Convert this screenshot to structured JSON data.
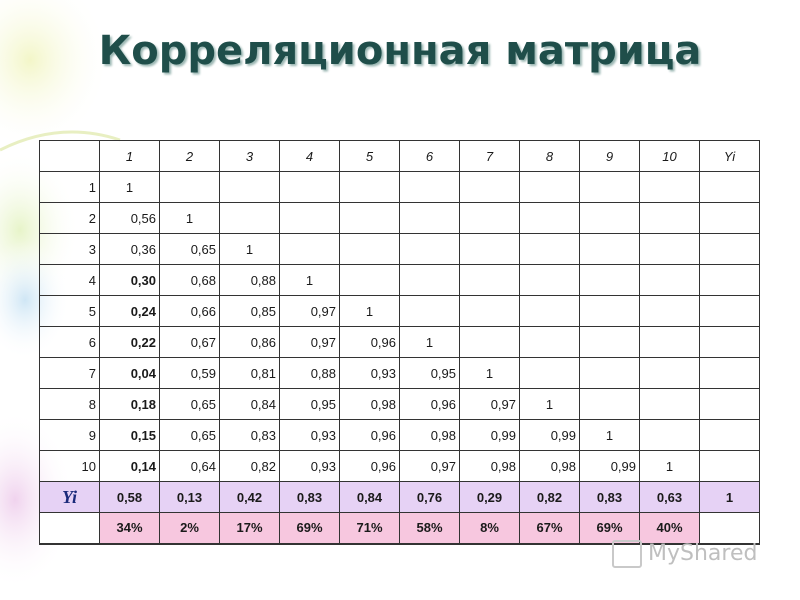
{
  "slide": {
    "title": "Корреляционная матрица",
    "watermark": "MyShared"
  },
  "matrix": {
    "header": [
      "1",
      "2",
      "3",
      "4",
      "5",
      "6",
      "7",
      "8",
      "9",
      "10",
      "Yi"
    ],
    "rows": [
      {
        "label": "1",
        "cells": [
          "1",
          "",
          "",
          "",
          "",
          "",
          "",
          "",
          "",
          "",
          ""
        ]
      },
      {
        "label": "2",
        "cells": [
          "0,56",
          "1",
          "",
          "",
          "",
          "",
          "",
          "",
          "",
          "",
          ""
        ]
      },
      {
        "label": "3",
        "cells": [
          "0,36",
          "0,65",
          "1",
          "",
          "",
          "",
          "",
          "",
          "",
          "",
          ""
        ]
      },
      {
        "label": "4",
        "cells": [
          "0,30",
          "0,68",
          "0,88",
          "1",
          "",
          "",
          "",
          "",
          "",
          "",
          ""
        ]
      },
      {
        "label": "5",
        "cells": [
          "0,24",
          "0,66",
          "0,85",
          "0,97",
          "1",
          "",
          "",
          "",
          "",
          "",
          ""
        ]
      },
      {
        "label": "6",
        "cells": [
          "0,22",
          "0,67",
          "0,86",
          "0,97",
          "0,96",
          "1",
          "",
          "",
          "",
          "",
          ""
        ]
      },
      {
        "label": "7",
        "cells": [
          "0,04",
          "0,59",
          "0,81",
          "0,88",
          "0,93",
          "0,95",
          "1",
          "",
          "",
          "",
          ""
        ]
      },
      {
        "label": "8",
        "cells": [
          "0,18",
          "0,65",
          "0,84",
          "0,95",
          "0,98",
          "0,96",
          "0,97",
          "1",
          "",
          "",
          ""
        ]
      },
      {
        "label": "9",
        "cells": [
          "0,15",
          "0,65",
          "0,83",
          "0,93",
          "0,96",
          "0,98",
          "0,99",
          "0,99",
          "1",
          "",
          ""
        ]
      },
      {
        "label": "10",
        "cells": [
          "0,14",
          "0,64",
          "0,82",
          "0,93",
          "0,96",
          "0,97",
          "0,98",
          "0,98",
          "0,99",
          "1",
          ""
        ]
      }
    ],
    "yi_row": {
      "label": "Yi",
      "cells": [
        "0,58",
        "0,13",
        "0,42",
        "0,83",
        "0,84",
        "0,76",
        "0,29",
        "0,82",
        "0,83",
        "0,63",
        "1"
      ]
    },
    "percent_row": [
      "34%",
      "2%",
      "17%",
      "69%",
      "71%",
      "58%",
      "8%",
      "67%",
      "69%",
      "40%"
    ]
  },
  "colors": {
    "title": "#1f4e4a",
    "yi_row_bg": "#e6d2f5",
    "percent_row_bg": "#f7c7df"
  }
}
